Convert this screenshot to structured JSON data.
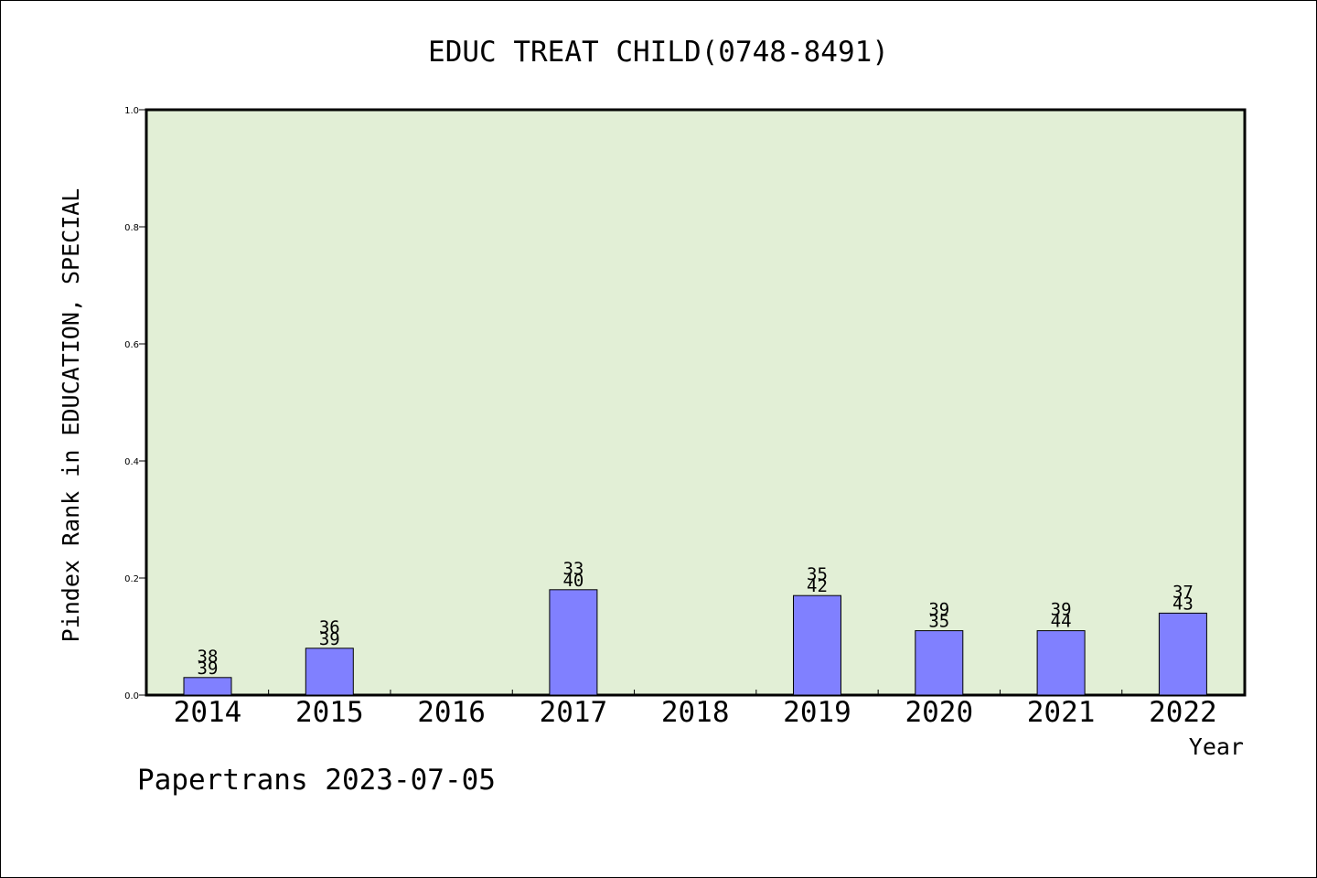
{
  "chart_data": {
    "type": "bar",
    "title": "EDUC TREAT CHILD(0748-8491)",
    "xlabel": "Year",
    "ylabel": "Pindex Rank in EDUCATION, SPECIAL",
    "footer": "Papertrans 2023-07-05",
    "categories": [
      "2014",
      "2015",
      "2016",
      "2017",
      "2018",
      "2019",
      "2020",
      "2021",
      "2022"
    ],
    "values": [
      0.03,
      0.08,
      null,
      0.18,
      null,
      0.17,
      0.11,
      0.11,
      0.14
    ],
    "label_top": [
      "38",
      "36",
      "",
      "33",
      "",
      "35",
      "39",
      "39",
      "37"
    ],
    "label_bottom": [
      "39",
      "39",
      "",
      "40",
      "",
      "42",
      "35",
      "44",
      "43"
    ],
    "ylim": [
      0,
      1.0
    ],
    "yticks": [
      "0.0",
      "0.2",
      "0.4",
      "0.6",
      "0.8",
      "1.0"
    ],
    "grid": false,
    "colors": {
      "plot_background": "#e2efd6",
      "bar_fill": "#8080ff",
      "bar_stroke": "#000000"
    }
  }
}
